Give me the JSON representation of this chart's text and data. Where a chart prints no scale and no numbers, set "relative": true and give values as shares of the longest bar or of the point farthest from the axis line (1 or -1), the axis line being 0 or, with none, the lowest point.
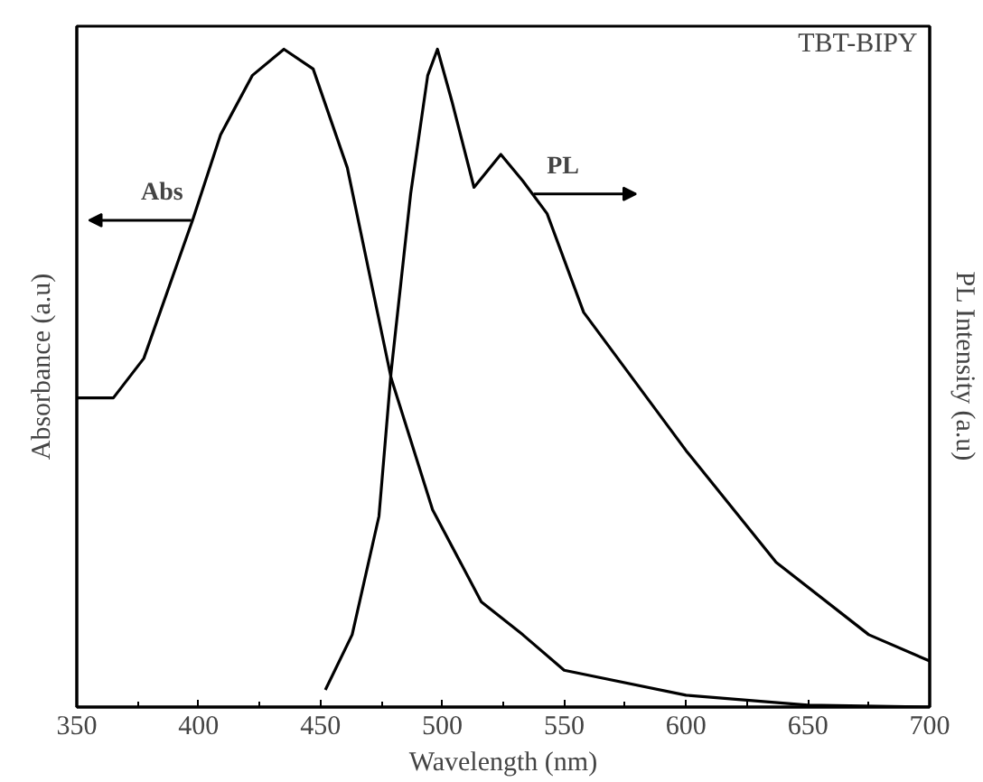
{
  "chart_data": {
    "type": "line",
    "relative": true,
    "xlabel": "Wavelength (nm)",
    "ylabel": "Absorbance (a.u)",
    "y2label": "PL Intensity (a.u)",
    "xlim": [
      350,
      700
    ],
    "xticks": [
      350,
      400,
      450,
      500,
      550,
      600,
      650,
      700
    ],
    "grid": false,
    "marker": "none",
    "line_style": "solid",
    "annotations": [
      "Abs",
      "PL",
      "TBT-BIPY"
    ],
    "series": [
      {
        "color": "#000000",
        "axis": "y",
        "x": [
          350,
          365,
          377.5,
          397.5,
          409,
          422,
          435,
          447,
          461,
          479,
          496,
          516,
          533,
          550,
          600,
          650,
          700
        ],
        "values": [
          0.47,
          0.47,
          0.53,
          0.74,
          0.87,
          0.96,
          1.0,
          0.97,
          0.82,
          0.5,
          0.3,
          0.16,
          0.11,
          0.056,
          0.018,
          0.003,
          0
        ]
      },
      {
        "color": "#000000",
        "axis": "y2",
        "x": [
          452,
          463,
          474,
          479,
          487,
          494,
          498,
          504,
          513,
          524,
          533,
          543,
          558,
          600,
          637,
          675,
          700
        ],
        "values": [
          0.026,
          0.11,
          0.29,
          0.51,
          0.78,
          0.96,
          1.0,
          0.92,
          0.79,
          0.84,
          0.8,
          0.75,
          0.6,
          0.39,
          0.22,
          0.11,
          0.07
        ]
      }
    ]
  }
}
